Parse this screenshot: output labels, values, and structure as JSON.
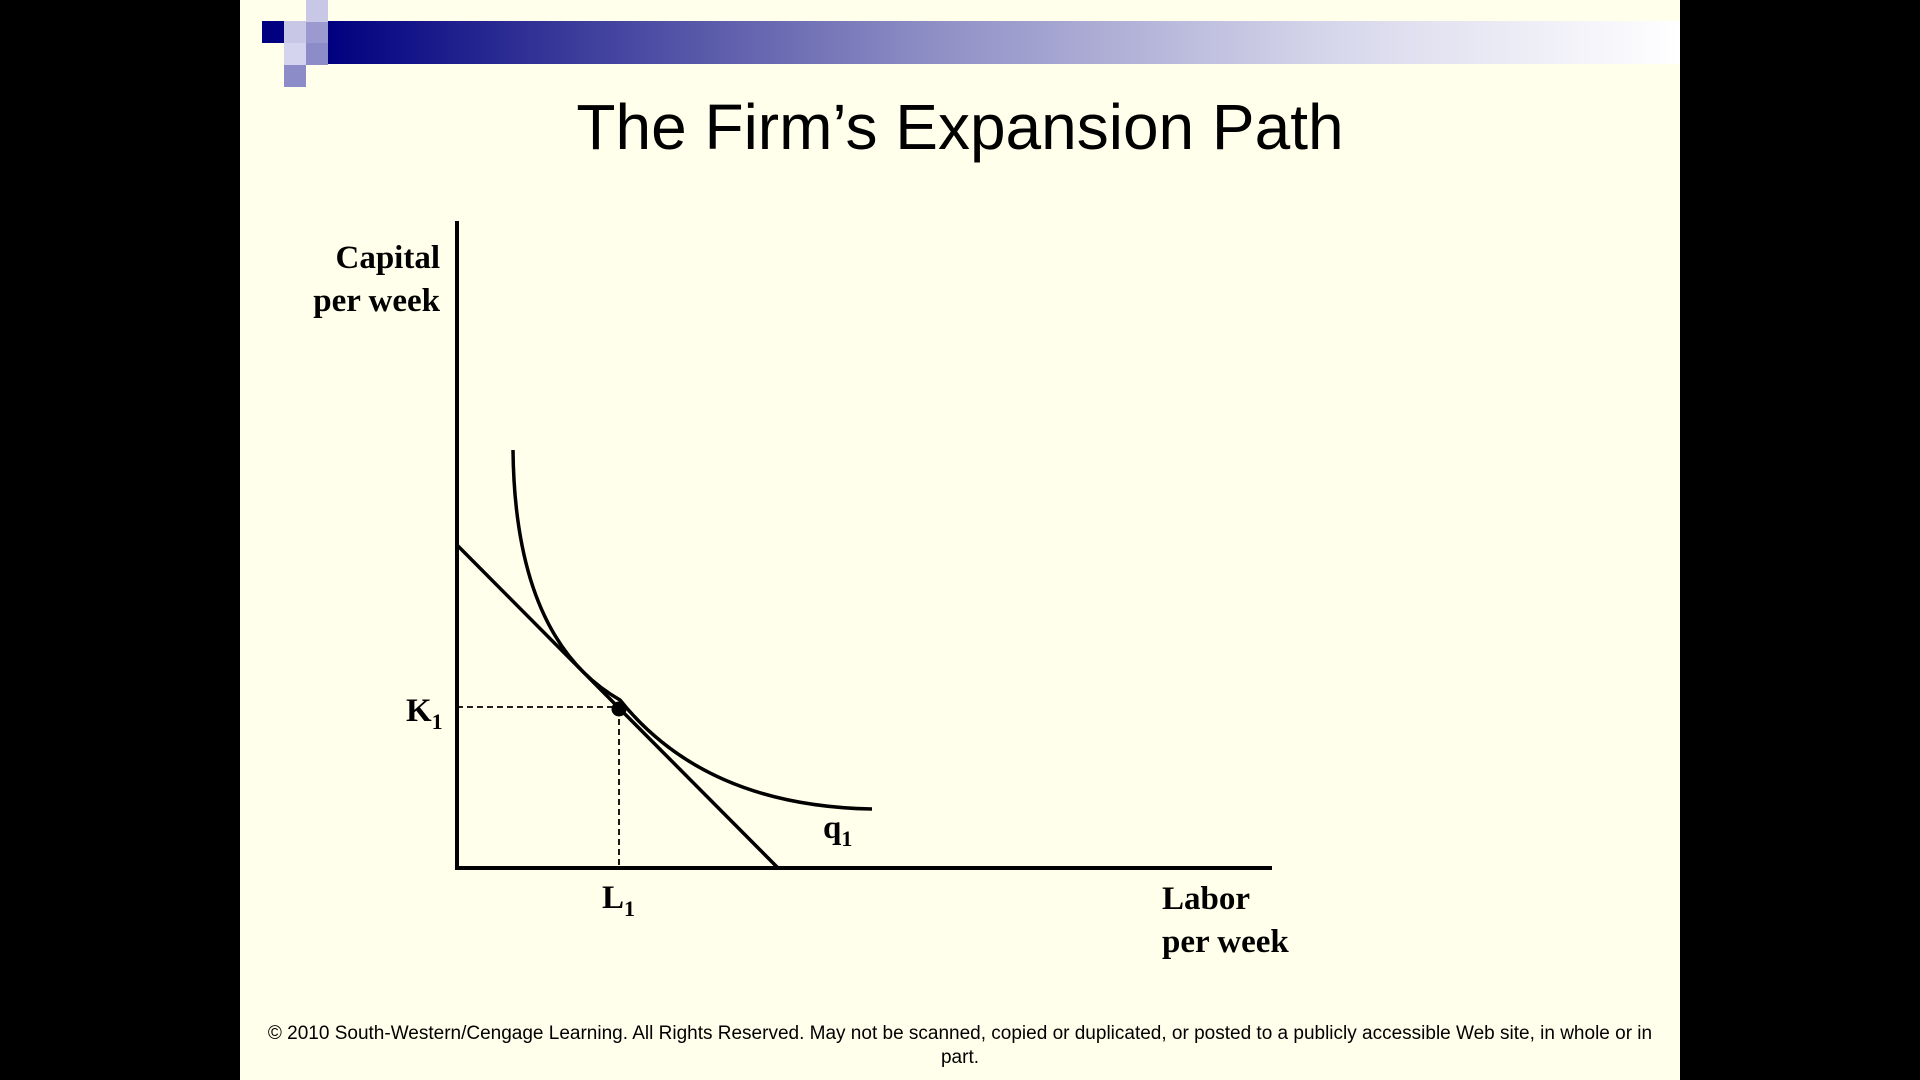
{
  "slide": {
    "title": "The Firm’s Expansion Path",
    "footer": "© 2010 South-Western/Cengage Learning. All Rights Reserved. May not be scanned, copied or duplicated, or posted to a publicly accessible Web site, in whole or in part.",
    "background": "#ffffeb",
    "accent": "#000080"
  },
  "diagram": {
    "y_axis_label_line1": "Capital",
    "y_axis_label_line2": "per week",
    "x_axis_label_line1": "Labor",
    "x_axis_label_line2": "per week",
    "k_label": "K",
    "k_subscript": "1",
    "l_label": "L",
    "l_subscript": "1",
    "isoquant_label": "q",
    "isoquant_subscript": "1"
  }
}
